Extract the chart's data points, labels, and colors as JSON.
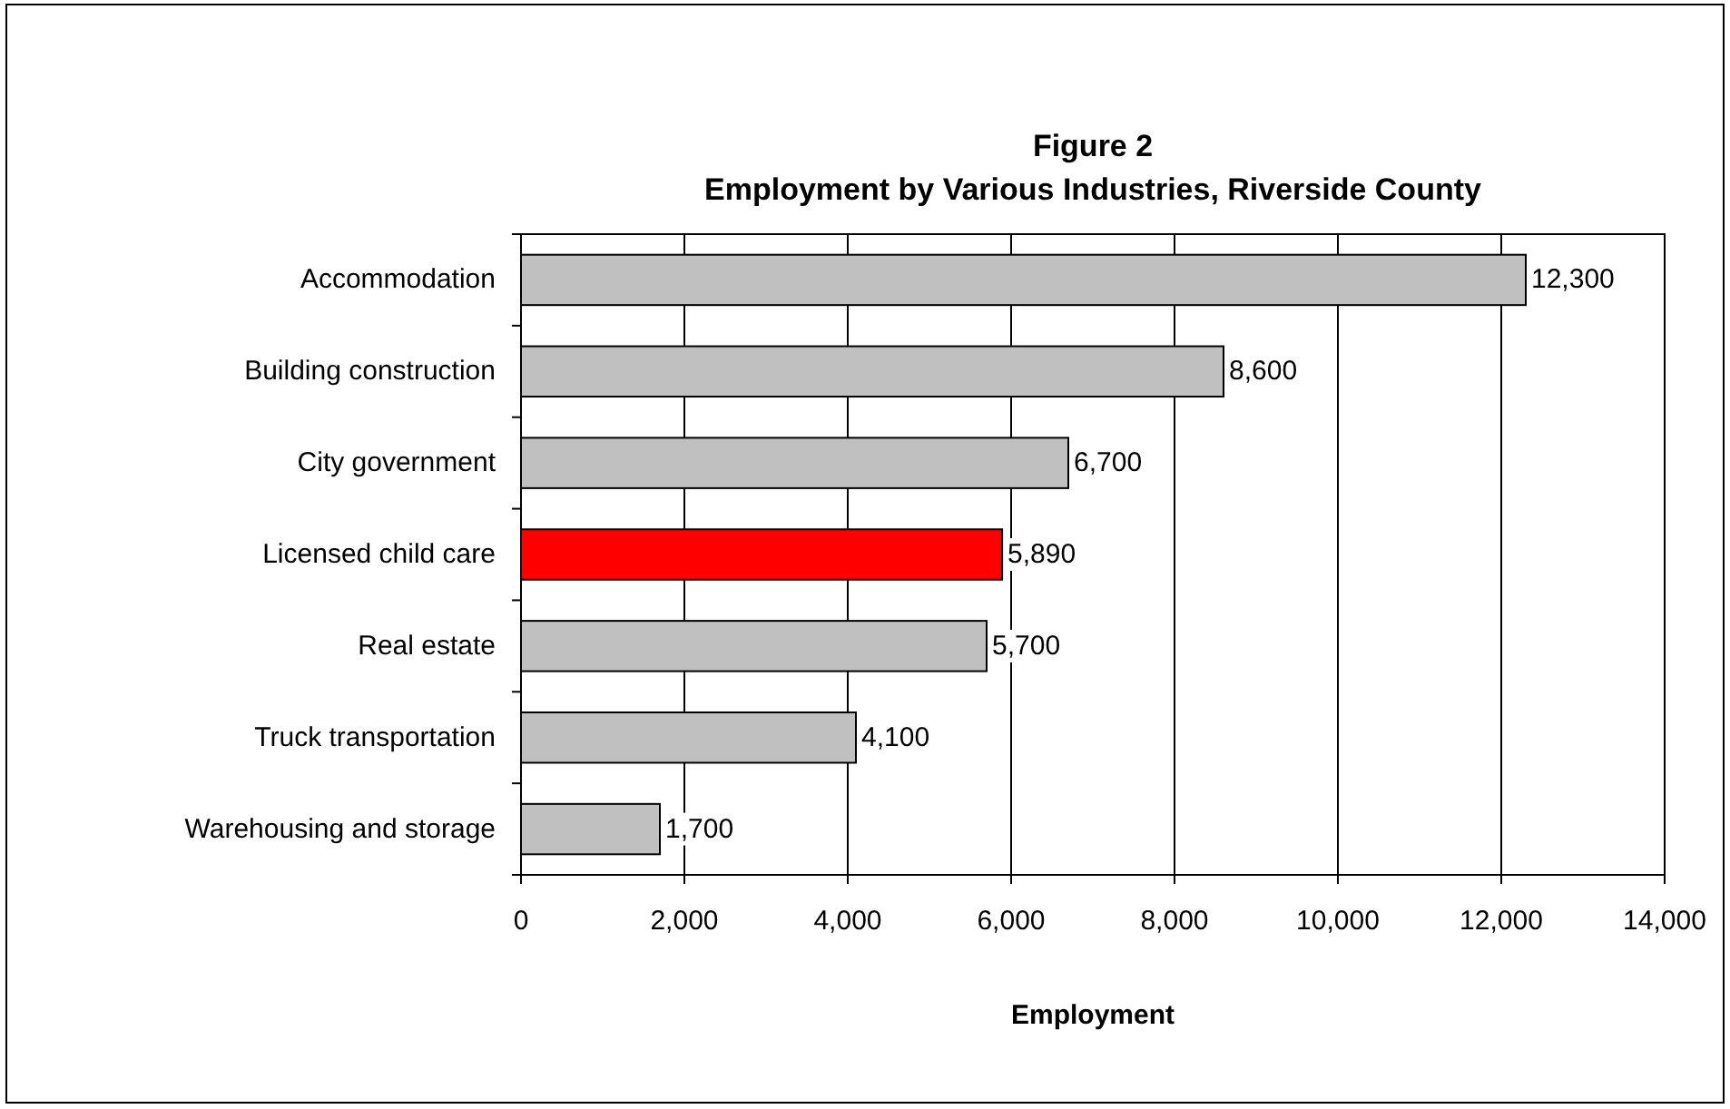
{
  "chart_data": {
    "type": "bar",
    "orientation": "horizontal",
    "title": "Figure 2",
    "subtitle": "Employment by Various Industries, Riverside County",
    "xlabel": "Employment",
    "categories": [
      "Accommodation",
      "Building construction",
      "City government",
      "Licensed child care",
      "Real estate",
      "Truck transportation",
      "Warehousing and storage"
    ],
    "values": [
      12300,
      8600,
      6700,
      5890,
      5700,
      4100,
      1700
    ],
    "value_labels": [
      "12,300",
      "8,600",
      "6,700",
      "5,890",
      "5,700",
      "4,100",
      "1,700"
    ],
    "colors": [
      "#c0c0c0",
      "#c0c0c0",
      "#c0c0c0",
      "#ff0000",
      "#c0c0c0",
      "#c0c0c0",
      "#c0c0c0"
    ],
    "xlim": [
      0,
      14000
    ],
    "xticks": [
      0,
      {
        "value": 2000,
        "label": "2,000"
      },
      {
        "value": 4000,
        "label": "4,000"
      },
      {
        "value": 6000,
        "label": "6,000"
      },
      {
        "value": 8000,
        "label": "8,000"
      },
      {
        "value": 10000,
        "label": "10,000"
      },
      {
        "value": 12000,
        "label": "12,000"
      },
      {
        "value": 14000,
        "label": "14,000"
      }
    ],
    "grid": "x"
  }
}
